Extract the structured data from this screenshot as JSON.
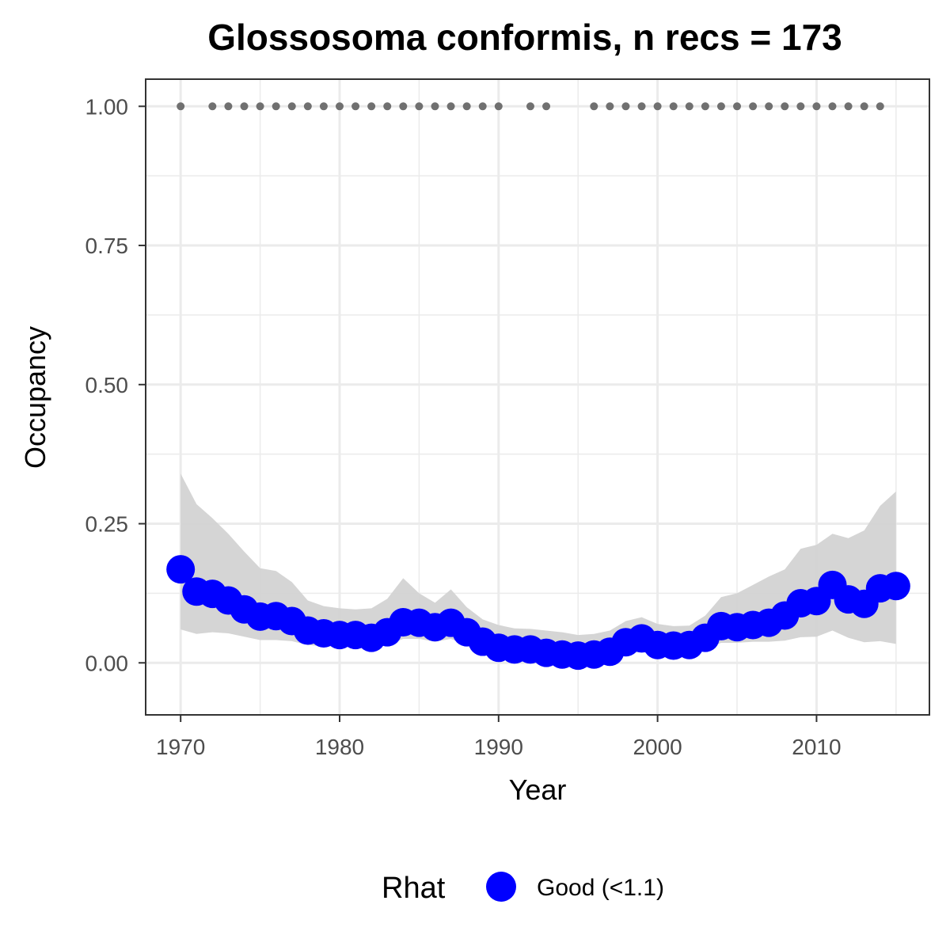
{
  "chart_data": {
    "type": "line",
    "title": "Glossosoma conformis, n recs = 173",
    "xlabel": "Year",
    "ylabel": "Occupancy",
    "xlim": [
      1967.8,
      2017.1
    ],
    "ylim": [
      -0.0935,
      1.0488
    ],
    "x_ticks": [
      1970,
      1980,
      1990,
      2000,
      2010
    ],
    "x_tick_labels": [
      "1970",
      "1980",
      "1990",
      "2000",
      "2010"
    ],
    "y_ticks": [
      0,
      0.25,
      0.5,
      0.75,
      1.0
    ],
    "y_tick_labels": [
      "0.00",
      "0.25",
      "0.50",
      "0.75",
      "1.00"
    ],
    "grid": true,
    "legend": {
      "title": "Rhat",
      "position": "bottom",
      "entries": [
        {
          "label": "Good (<1.1)",
          "color": "#0000ff"
        }
      ]
    },
    "colors": {
      "points": "#0000ff",
      "ribbon": "#d3d3d3",
      "records": "#707070",
      "grid": "#ebebeb",
      "border": "#333333"
    },
    "record_years": [
      1970,
      1972,
      1973,
      1974,
      1975,
      1976,
      1977,
      1978,
      1979,
      1980,
      1981,
      1982,
      1983,
      1984,
      1985,
      1986,
      1987,
      1988,
      1989,
      1990,
      1992,
      1993,
      1996,
      1997,
      1998,
      1999,
      2000,
      2001,
      2002,
      2003,
      2004,
      2005,
      2006,
      2007,
      2008,
      2009,
      2010,
      2011,
      2012,
      2013,
      2014
    ],
    "record_value": 1.0,
    "series": [
      {
        "name": "Good (<1.1)",
        "x": [
          1970,
          1971,
          1972,
          1973,
          1974,
          1975,
          1976,
          1977,
          1978,
          1979,
          1980,
          1981,
          1982,
          1983,
          1984,
          1985,
          1986,
          1987,
          1988,
          1989,
          1990,
          1991,
          1992,
          1993,
          1994,
          1995,
          1996,
          1997,
          1998,
          1999,
          2000,
          2001,
          2002,
          2003,
          2004,
          2005,
          2006,
          2007,
          2008,
          2009,
          2010,
          2011,
          2012,
          2013,
          2014,
          2015
        ],
        "y": [
          0.168,
          0.128,
          0.124,
          0.112,
          0.096,
          0.083,
          0.084,
          0.075,
          0.058,
          0.053,
          0.05,
          0.05,
          0.045,
          0.055,
          0.073,
          0.072,
          0.064,
          0.072,
          0.055,
          0.038,
          0.027,
          0.024,
          0.024,
          0.018,
          0.015,
          0.013,
          0.015,
          0.02,
          0.037,
          0.044,
          0.032,
          0.031,
          0.032,
          0.045,
          0.066,
          0.064,
          0.068,
          0.072,
          0.085,
          0.107,
          0.111,
          0.14,
          0.114,
          0.106,
          0.134,
          0.138
        ],
        "lower": [
          0.06,
          0.052,
          0.055,
          0.053,
          0.047,
          0.041,
          0.041,
          0.039,
          0.032,
          0.03,
          0.029,
          0.029,
          0.026,
          0.032,
          0.043,
          0.043,
          0.038,
          0.043,
          0.032,
          0.021,
          0.014,
          0.012,
          0.01,
          0.007,
          0.005,
          0.004,
          0.005,
          0.008,
          0.016,
          0.02,
          0.013,
          0.014,
          0.016,
          0.024,
          0.036,
          0.036,
          0.038,
          0.038,
          0.04,
          0.046,
          0.047,
          0.058,
          0.045,
          0.037,
          0.039,
          0.034
        ],
        "upper": [
          0.34,
          0.285,
          0.26,
          0.232,
          0.2,
          0.17,
          0.165,
          0.145,
          0.112,
          0.102,
          0.098,
          0.096,
          0.098,
          0.115,
          0.152,
          0.125,
          0.108,
          0.132,
          0.1,
          0.078,
          0.068,
          0.062,
          0.061,
          0.058,
          0.055,
          0.05,
          0.052,
          0.058,
          0.075,
          0.082,
          0.07,
          0.066,
          0.067,
          0.085,
          0.118,
          0.125,
          0.14,
          0.155,
          0.168,
          0.205,
          0.212,
          0.232,
          0.224,
          0.238,
          0.282,
          0.308
        ]
      }
    ]
  }
}
